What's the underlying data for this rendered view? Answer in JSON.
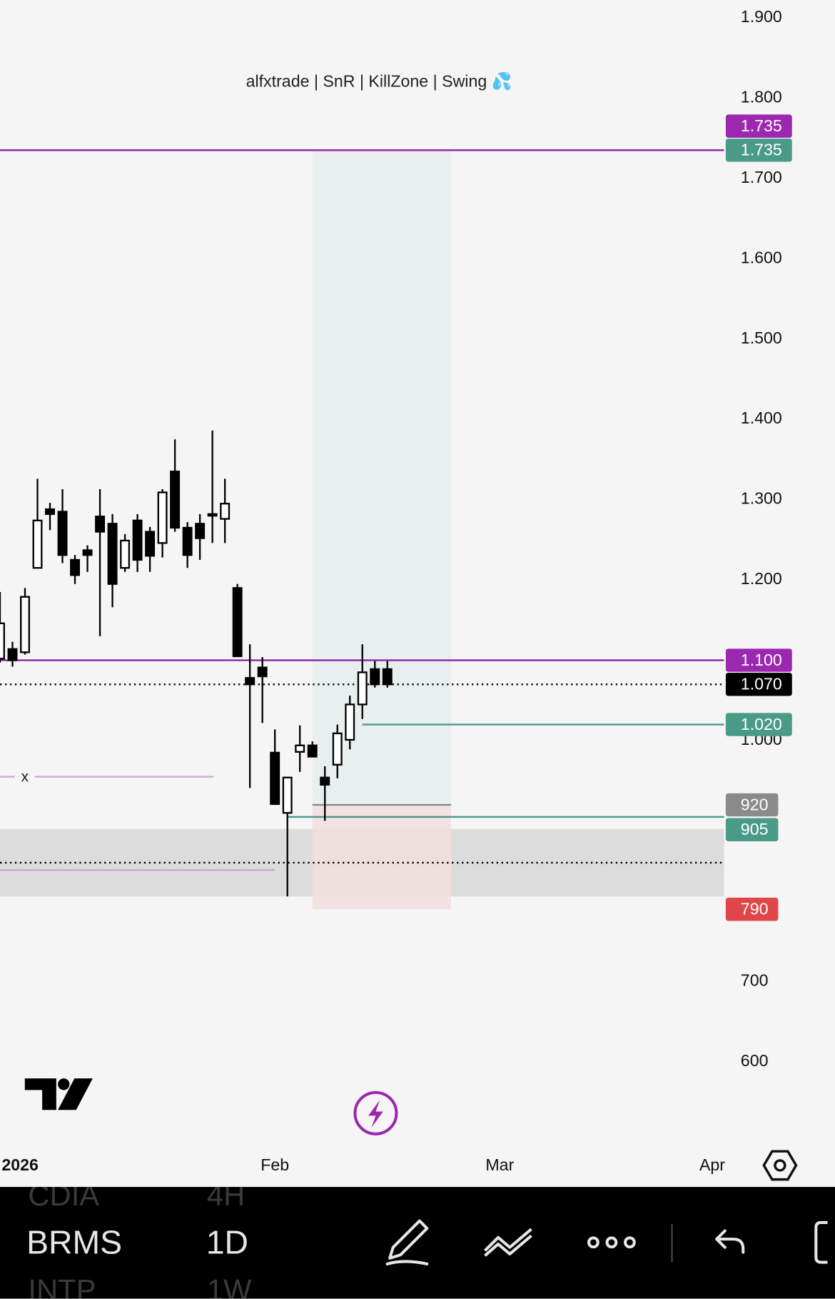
{
  "chart_data": {
    "type": "candlestick",
    "title": "alfxtrade | SnR | KillZone | Swing 💦",
    "x": [
      0,
      1,
      2,
      3,
      4,
      5,
      6,
      7,
      8,
      9,
      10,
      11,
      12,
      13,
      14,
      15,
      16,
      17,
      18,
      19,
      20,
      21,
      22,
      23,
      24,
      25,
      26,
      27,
      28,
      29,
      30,
      31
    ],
    "open": [
      1102,
      1114,
      1110,
      1215,
      1288,
      1285,
      1225,
      1237,
      1279,
      1270,
      1215,
      1274,
      1260,
      1246,
      1335,
      1265,
      1270,
      1282,
      1276,
      1190,
      1078,
      1091,
      985,
      910,
      986,
      994,
      954,
      970,
      1001,
      1045,
      1089,
      1089
    ],
    "high": [
      1185,
      1123,
      1190,
      1326,
      1296,
      1313,
      1231,
      1243,
      1313,
      1282,
      1257,
      1282,
      1266,
      1313,
      1375,
      1272,
      1282,
      1386,
      1326,
      1195,
      1120,
      1104,
      1014,
      954,
      1019,
      999,
      968,
      1020,
      1056,
      1120,
      1099,
      1099
    ],
    "low": [
      1097,
      1092,
      1107,
      1215,
      1262,
      1221,
      1195,
      1210,
      1130,
      1166,
      1210,
      1210,
      1210,
      1228,
      1260,
      1215,
      1225,
      1246,
      1246,
      1105,
      941,
      1022,
      921,
      806,
      961,
      980,
      900,
      953,
      989,
      1027,
      1066,
      1066
    ],
    "close": [
      1146,
      1100,
      1179,
      1274,
      1282,
      1231,
      1206,
      1231,
      1260,
      1195,
      1249,
      1225,
      1230,
      1309,
      1265,
      1231,
      1252,
      1280,
      1295,
      1105,
      1070,
      1080,
      921,
      954,
      994,
      980,
      945,
      1009,
      1045,
      1085,
      1070,
      1070
    ],
    "up_color": "#ffffff",
    "down_color": "#000000",
    "xlim": [
      0,
      57.95
    ],
    "xticks": [
      {
        "value": 2,
        "label": "2026"
      },
      {
        "value": 22,
        "label": "Feb"
      },
      {
        "value": 40,
        "label": "Mar"
      },
      {
        "value": 57,
        "label": "Apr"
      }
    ],
    "ylim": [
      488.7,
      1921.6
    ],
    "yticks": [
      {
        "value": 1900,
        "label": "1.900"
      },
      {
        "value": 1800,
        "label": "1.800"
      },
      {
        "value": 1700,
        "label": "1.700"
      },
      {
        "value": 1600,
        "label": "1.600"
      },
      {
        "value": 1500,
        "label": "1.500"
      },
      {
        "value": 1400,
        "label": "1.400"
      },
      {
        "value": 1300,
        "label": "1.300"
      },
      {
        "value": 1200,
        "label": "1.200"
      },
      {
        "value": 1000,
        "label": "1.000"
      },
      700,
      600
    ],
    "zones": [
      {
        "from": 806,
        "to": 890,
        "color": "#dcdcdc",
        "x": [
          0,
          57.95
        ]
      }
    ],
    "position": {
      "x": [
        25,
        36.1
      ],
      "target": 1735,
      "entry": 920,
      "stop": 790,
      "profit_color": "#e6ecec",
      "loss_color": "#f2dede"
    },
    "lines": [
      {
        "value": 1735,
        "color": "#8e24aa",
        "style": "solid",
        "x": [
          0,
          57.95
        ]
      },
      {
        "value": 1100,
        "color": "#8e24aa",
        "style": "solid",
        "x": [
          0,
          57.95
        ]
      },
      {
        "value": 1070,
        "color": "#000000",
        "style": "dotted",
        "x": [
          0,
          57.95
        ]
      },
      {
        "value": 1020,
        "color": "#4a9a88",
        "style": "solid",
        "x": [
          29,
          57.95
        ]
      },
      {
        "value": 920,
        "color": "#8a8a8a",
        "style": "solid",
        "x": [
          25,
          36.1
        ]
      },
      {
        "value": 905,
        "color": "#4a9a88",
        "style": "solid",
        "x": [
          23,
          57.95
        ]
      },
      {
        "value": 955,
        "color": "#d4a6dd",
        "style": "solid",
        "x": [
          0,
          17.1
        ],
        "text": "x"
      },
      {
        "value": 848,
        "color": "#000000",
        "style": "dotted",
        "x": [
          0,
          57.95
        ]
      },
      {
        "value": 839,
        "color": "#c9a8d2",
        "style": "solid",
        "x": [
          0,
          22
        ]
      }
    ],
    "price_labels": [
      {
        "value": 1735,
        "label": "1.735",
        "color": "#4a9a88"
      },
      {
        "value": 1735,
        "label": "1.735",
        "color": "#9c27b0"
      },
      {
        "value": 1100,
        "label": "1.100",
        "color": "#9c27b0"
      },
      {
        "value": 1070,
        "label": "1.070",
        "color": "#000000"
      },
      {
        "value": 1020,
        "label": "1.020",
        "color": "#4a9a88"
      },
      {
        "value": 920,
        "label": "920",
        "color": "#8a8a8a"
      },
      {
        "value": 905,
        "label": "905",
        "color": "#4a9a88"
      },
      {
        "value": 790,
        "label": "790",
        "color": "#e0454a"
      }
    ]
  },
  "toolbar": {
    "symbol": "BRMS",
    "interval": "1D",
    "symbol_above": "CDIA",
    "interval_above": "4H",
    "symbol_below": "INTP",
    "interval_below": "1W"
  }
}
